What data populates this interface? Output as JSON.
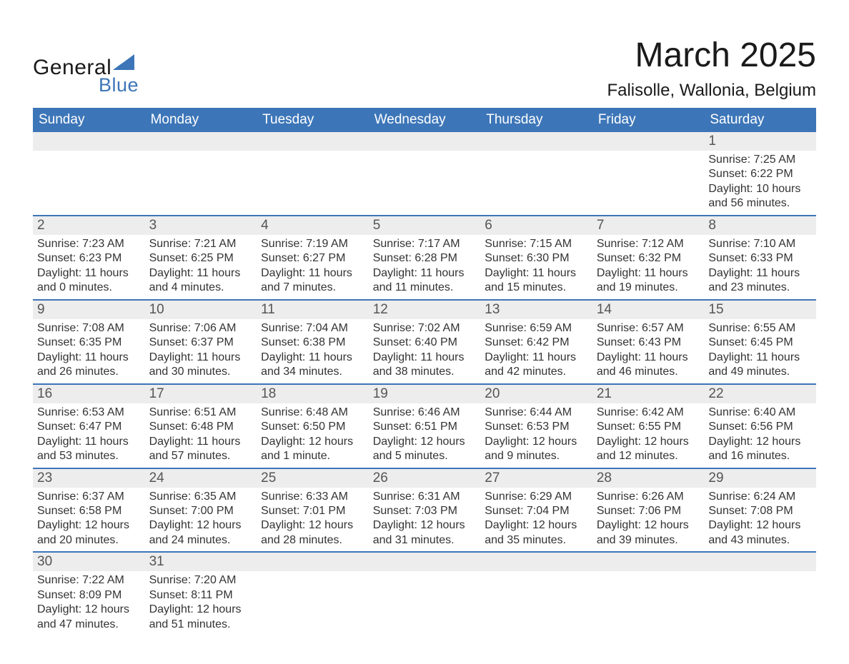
{
  "brand": {
    "line1": "General",
    "line2": "Blue",
    "accent_color": "#3d76b8"
  },
  "title": "March 2025",
  "subtitle": "Falisolle, Wallonia, Belgium",
  "colors": {
    "header_bg": "#3d76b8",
    "header_text": "#ffffff",
    "daynum_bg": "#ededed",
    "cell_border": "#3d76b8",
    "text": "#333333",
    "page_bg": "#ffffff"
  },
  "weekdays": [
    "Sunday",
    "Monday",
    "Tuesday",
    "Wednesday",
    "Thursday",
    "Friday",
    "Saturday"
  ],
  "weeks": [
    [
      {
        "day": "",
        "sunrise": "",
        "sunset": "",
        "daylight": ""
      },
      {
        "day": "",
        "sunrise": "",
        "sunset": "",
        "daylight": ""
      },
      {
        "day": "",
        "sunrise": "",
        "sunset": "",
        "daylight": ""
      },
      {
        "day": "",
        "sunrise": "",
        "sunset": "",
        "daylight": ""
      },
      {
        "day": "",
        "sunrise": "",
        "sunset": "",
        "daylight": ""
      },
      {
        "day": "",
        "sunrise": "",
        "sunset": "",
        "daylight": ""
      },
      {
        "day": "1",
        "sunrise": "Sunrise: 7:25 AM",
        "sunset": "Sunset: 6:22 PM",
        "daylight": "Daylight: 10 hours and 56 minutes."
      }
    ],
    [
      {
        "day": "2",
        "sunrise": "Sunrise: 7:23 AM",
        "sunset": "Sunset: 6:23 PM",
        "daylight": "Daylight: 11 hours and 0 minutes."
      },
      {
        "day": "3",
        "sunrise": "Sunrise: 7:21 AM",
        "sunset": "Sunset: 6:25 PM",
        "daylight": "Daylight: 11 hours and 4 minutes."
      },
      {
        "day": "4",
        "sunrise": "Sunrise: 7:19 AM",
        "sunset": "Sunset: 6:27 PM",
        "daylight": "Daylight: 11 hours and 7 minutes."
      },
      {
        "day": "5",
        "sunrise": "Sunrise: 7:17 AM",
        "sunset": "Sunset: 6:28 PM",
        "daylight": "Daylight: 11 hours and 11 minutes."
      },
      {
        "day": "6",
        "sunrise": "Sunrise: 7:15 AM",
        "sunset": "Sunset: 6:30 PM",
        "daylight": "Daylight: 11 hours and 15 minutes."
      },
      {
        "day": "7",
        "sunrise": "Sunrise: 7:12 AM",
        "sunset": "Sunset: 6:32 PM",
        "daylight": "Daylight: 11 hours and 19 minutes."
      },
      {
        "day": "8",
        "sunrise": "Sunrise: 7:10 AM",
        "sunset": "Sunset: 6:33 PM",
        "daylight": "Daylight: 11 hours and 23 minutes."
      }
    ],
    [
      {
        "day": "9",
        "sunrise": "Sunrise: 7:08 AM",
        "sunset": "Sunset: 6:35 PM",
        "daylight": "Daylight: 11 hours and 26 minutes."
      },
      {
        "day": "10",
        "sunrise": "Sunrise: 7:06 AM",
        "sunset": "Sunset: 6:37 PM",
        "daylight": "Daylight: 11 hours and 30 minutes."
      },
      {
        "day": "11",
        "sunrise": "Sunrise: 7:04 AM",
        "sunset": "Sunset: 6:38 PM",
        "daylight": "Daylight: 11 hours and 34 minutes."
      },
      {
        "day": "12",
        "sunrise": "Sunrise: 7:02 AM",
        "sunset": "Sunset: 6:40 PM",
        "daylight": "Daylight: 11 hours and 38 minutes."
      },
      {
        "day": "13",
        "sunrise": "Sunrise: 6:59 AM",
        "sunset": "Sunset: 6:42 PM",
        "daylight": "Daylight: 11 hours and 42 minutes."
      },
      {
        "day": "14",
        "sunrise": "Sunrise: 6:57 AM",
        "sunset": "Sunset: 6:43 PM",
        "daylight": "Daylight: 11 hours and 46 minutes."
      },
      {
        "day": "15",
        "sunrise": "Sunrise: 6:55 AM",
        "sunset": "Sunset: 6:45 PM",
        "daylight": "Daylight: 11 hours and 49 minutes."
      }
    ],
    [
      {
        "day": "16",
        "sunrise": "Sunrise: 6:53 AM",
        "sunset": "Sunset: 6:47 PM",
        "daylight": "Daylight: 11 hours and 53 minutes."
      },
      {
        "day": "17",
        "sunrise": "Sunrise: 6:51 AM",
        "sunset": "Sunset: 6:48 PM",
        "daylight": "Daylight: 11 hours and 57 minutes."
      },
      {
        "day": "18",
        "sunrise": "Sunrise: 6:48 AM",
        "sunset": "Sunset: 6:50 PM",
        "daylight": "Daylight: 12 hours and 1 minute."
      },
      {
        "day": "19",
        "sunrise": "Sunrise: 6:46 AM",
        "sunset": "Sunset: 6:51 PM",
        "daylight": "Daylight: 12 hours and 5 minutes."
      },
      {
        "day": "20",
        "sunrise": "Sunrise: 6:44 AM",
        "sunset": "Sunset: 6:53 PM",
        "daylight": "Daylight: 12 hours and 9 minutes."
      },
      {
        "day": "21",
        "sunrise": "Sunrise: 6:42 AM",
        "sunset": "Sunset: 6:55 PM",
        "daylight": "Daylight: 12 hours and 12 minutes."
      },
      {
        "day": "22",
        "sunrise": "Sunrise: 6:40 AM",
        "sunset": "Sunset: 6:56 PM",
        "daylight": "Daylight: 12 hours and 16 minutes."
      }
    ],
    [
      {
        "day": "23",
        "sunrise": "Sunrise: 6:37 AM",
        "sunset": "Sunset: 6:58 PM",
        "daylight": "Daylight: 12 hours and 20 minutes."
      },
      {
        "day": "24",
        "sunrise": "Sunrise: 6:35 AM",
        "sunset": "Sunset: 7:00 PM",
        "daylight": "Daylight: 12 hours and 24 minutes."
      },
      {
        "day": "25",
        "sunrise": "Sunrise: 6:33 AM",
        "sunset": "Sunset: 7:01 PM",
        "daylight": "Daylight: 12 hours and 28 minutes."
      },
      {
        "day": "26",
        "sunrise": "Sunrise: 6:31 AM",
        "sunset": "Sunset: 7:03 PM",
        "daylight": "Daylight: 12 hours and 31 minutes."
      },
      {
        "day": "27",
        "sunrise": "Sunrise: 6:29 AM",
        "sunset": "Sunset: 7:04 PM",
        "daylight": "Daylight: 12 hours and 35 minutes."
      },
      {
        "day": "28",
        "sunrise": "Sunrise: 6:26 AM",
        "sunset": "Sunset: 7:06 PM",
        "daylight": "Daylight: 12 hours and 39 minutes."
      },
      {
        "day": "29",
        "sunrise": "Sunrise: 6:24 AM",
        "sunset": "Sunset: 7:08 PM",
        "daylight": "Daylight: 12 hours and 43 minutes."
      }
    ],
    [
      {
        "day": "30",
        "sunrise": "Sunrise: 7:22 AM",
        "sunset": "Sunset: 8:09 PM",
        "daylight": "Daylight: 12 hours and 47 minutes."
      },
      {
        "day": "31",
        "sunrise": "Sunrise: 7:20 AM",
        "sunset": "Sunset: 8:11 PM",
        "daylight": "Daylight: 12 hours and 51 minutes."
      },
      {
        "day": "",
        "sunrise": "",
        "sunset": "",
        "daylight": ""
      },
      {
        "day": "",
        "sunrise": "",
        "sunset": "",
        "daylight": ""
      },
      {
        "day": "",
        "sunrise": "",
        "sunset": "",
        "daylight": ""
      },
      {
        "day": "",
        "sunrise": "",
        "sunset": "",
        "daylight": ""
      },
      {
        "day": "",
        "sunrise": "",
        "sunset": "",
        "daylight": ""
      }
    ]
  ]
}
